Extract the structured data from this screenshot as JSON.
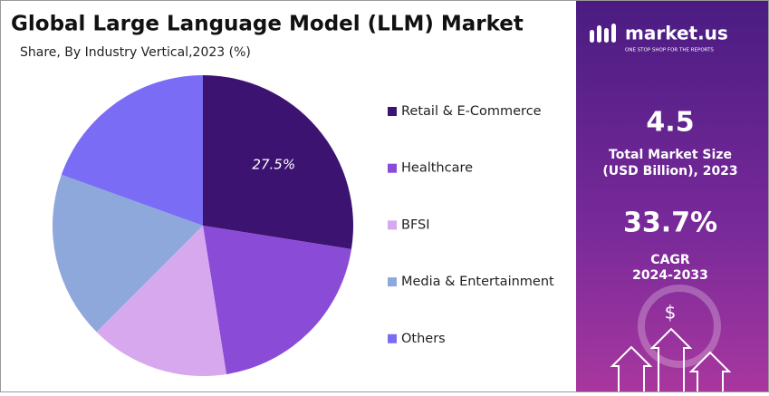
{
  "chart_data": {
    "type": "pie",
    "title": "Global Large Language Model (LLM) Market",
    "subtitle": "Share, By Industry Vertical,2023 (%)",
    "categories": [
      "Retail & E-Commerce",
      "Healthcare",
      "BFSI",
      "Media & Entertainment",
      "Others"
    ],
    "values": [
      27.5,
      20,
      15,
      18,
      19.5
    ],
    "value_labels": [
      "27.5%",
      null,
      null,
      null,
      null
    ],
    "colors": [
      "#3d1372",
      "#8a4bd6",
      "#d7a8ee",
      "#8fa8dc",
      "#7b6cf5"
    ],
    "legend": "right"
  },
  "side_panel": {
    "brand": "market.us",
    "tagline": "ONE STOP SHOP FOR THE REPORTS",
    "market_size": "4.5",
    "market_size_label_1": "Total Market Size",
    "market_size_label_2": "(USD Billion), 2023",
    "cagr": "33.7%",
    "cagr_label_1": "CAGR",
    "cagr_label_2": "2024-2033",
    "currency": "$"
  }
}
